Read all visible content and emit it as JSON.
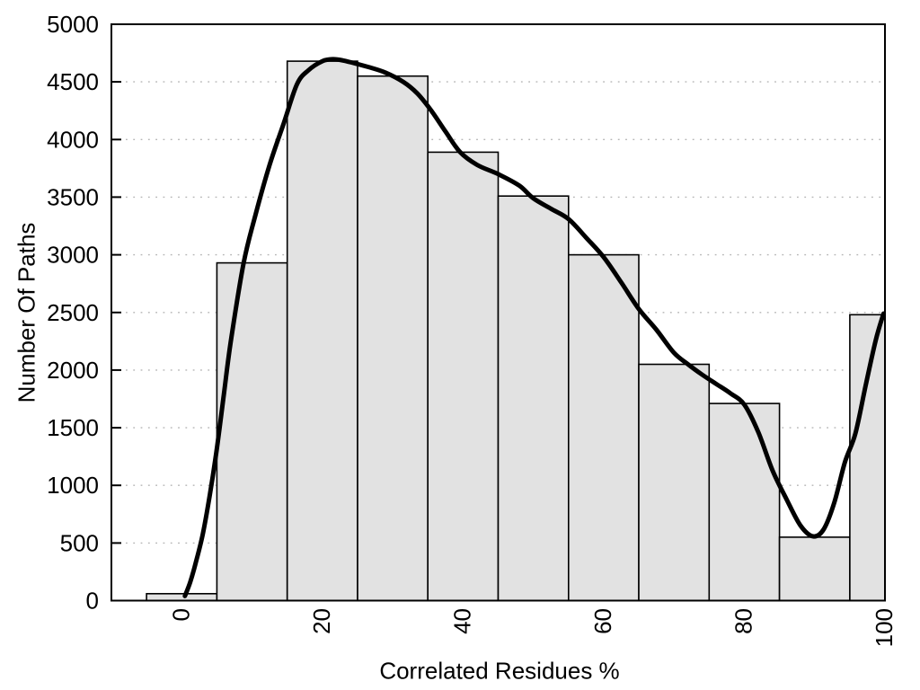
{
  "chart_data": {
    "type": "bar",
    "subtype": "histogram_with_smooth_curve",
    "title": "",
    "xlabel": "Correlated Residues %",
    "ylabel": "Number Of Paths",
    "xlim": [
      -10,
      100
    ],
    "ylim": [
      0,
      5000
    ],
    "xticks": [
      0,
      20,
      40,
      60,
      80,
      100
    ],
    "yticks": [
      0,
      500,
      1000,
      1500,
      2000,
      2500,
      3000,
      3500,
      4000,
      4500,
      5000
    ],
    "grid": {
      "horizontal_dotted_at": [
        500,
        1000,
        1500,
        2000,
        2500,
        3000,
        3500,
        4000,
        4500
      ],
      "vertical": false
    },
    "legend": "none",
    "bins": {
      "centers": [
        0,
        10,
        20,
        30,
        40,
        50,
        60,
        70,
        80,
        90,
        100
      ],
      "bin_width": 10,
      "values": [
        60,
        2930,
        4680,
        4550,
        3890,
        3510,
        3000,
        2050,
        1710,
        550,
        2480
      ],
      "last_bin_clipped_at_x": 100
    },
    "curve": {
      "name": "smooth-trend-curve",
      "points": [
        [
          0.45,
          40
        ],
        [
          1.2,
          160
        ],
        [
          2,
          330
        ],
        [
          3,
          580
        ],
        [
          4,
          920
        ],
        [
          5,
          1320
        ],
        [
          6,
          1790
        ],
        [
          7,
          2260
        ],
        [
          8.8,
          2930
        ],
        [
          10.5,
          3350
        ],
        [
          12.5,
          3780
        ],
        [
          14.5,
          4140
        ],
        [
          16.4,
          4480
        ],
        [
          18,
          4600
        ],
        [
          20,
          4680
        ],
        [
          21.5,
          4697
        ],
        [
          23,
          4685
        ],
        [
          26.5,
          4630
        ],
        [
          29,
          4580
        ],
        [
          31.5,
          4500
        ],
        [
          33.5,
          4400
        ],
        [
          35.5,
          4250
        ],
        [
          37.5,
          4070
        ],
        [
          39.6,
          3890
        ],
        [
          42,
          3780
        ],
        [
          45,
          3700
        ],
        [
          48,
          3600
        ],
        [
          50,
          3490
        ],
        [
          52.5,
          3400
        ],
        [
          55,
          3310
        ],
        [
          57.5,
          3150
        ],
        [
          60,
          2980
        ],
        [
          62.5,
          2760
        ],
        [
          65,
          2530
        ],
        [
          67.5,
          2350
        ],
        [
          70,
          2150
        ],
        [
          72,
          2050
        ],
        [
          74,
          1960
        ],
        [
          76,
          1880
        ],
        [
          78,
          1800
        ],
        [
          80,
          1700
        ],
        [
          82,
          1460
        ],
        [
          84,
          1130
        ],
        [
          86,
          880
        ],
        [
          88,
          650
        ],
        [
          89.8,
          557
        ],
        [
          91.3,
          620
        ],
        [
          92.8,
          850
        ],
        [
          94.3,
          1200
        ],
        [
          95.8,
          1450
        ],
        [
          97.3,
          1880
        ],
        [
          98.7,
          2260
        ],
        [
          99.8,
          2490
        ]
      ]
    }
  },
  "styles": {
    "background": "#ffffff",
    "bar_fill": "#e2e2e2",
    "bar_stroke": "#000000",
    "curve_color": "#000000",
    "grid_color": "#b5b5b5",
    "frame_color": "#000000",
    "text_color": "#000000"
  }
}
